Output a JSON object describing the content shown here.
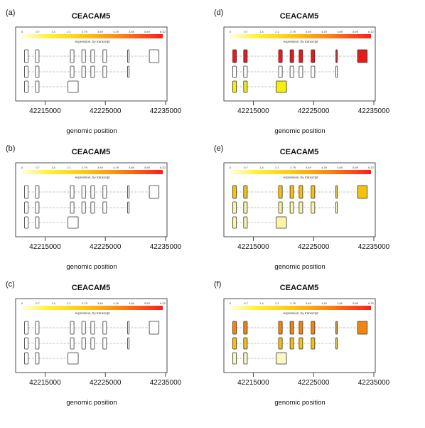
{
  "chart_data": [
    {
      "panel": "(a)",
      "title": "CEACAM5",
      "type": "gene-model",
      "xlabel": "genomic position",
      "xticks": [
        42215000,
        42225000,
        42235000
      ],
      "legend": {
        "caption": "expression, by transcript",
        "labels": [
          "0",
          "0.7",
          "1.4",
          "2.1",
          "2.79",
          "3.49",
          "4.19",
          "4.89",
          "5.59",
          "6.32"
        ]
      },
      "transcripts": [
        {
          "exons": [
            [
              42211600,
              42212200
            ],
            [
              42213400,
              42214000
            ],
            [
              42219200,
              42219800
            ],
            [
              42221100,
              42221700
            ],
            [
              42222600,
              42223200
            ],
            [
              42224600,
              42225200
            ],
            [
              42228700,
              42228950
            ],
            [
              42232300,
              42233900
            ]
          ],
          "fill": "#ffffff"
        },
        {
          "exons": [
            [
              42211600,
              42212200
            ],
            [
              42213400,
              42214000
            ],
            [
              42219200,
              42219800
            ],
            [
              42221100,
              42221700
            ],
            [
              42222600,
              42223200
            ],
            [
              42224600,
              42225200
            ],
            [
              42228700,
              42228950
            ]
          ],
          "fill": "#ffffff"
        },
        {
          "exons": [
            [
              42211600,
              42212200
            ],
            [
              42213400,
              42214000
            ],
            [
              42218800,
              42220500
            ]
          ],
          "fill": "#ffffff"
        }
      ]
    },
    {
      "panel": "(b)",
      "title": "CEACAM5",
      "type": "gene-model",
      "xlabel": "genomic position",
      "xticks": [
        42215000,
        42225000,
        42235000
      ],
      "legend": {
        "caption": "expression, by transcript",
        "labels": [
          "0",
          "0.7",
          "1.4",
          "2.1",
          "2.79",
          "3.49",
          "4.19",
          "4.89",
          "5.59",
          "6.32"
        ]
      },
      "transcripts": [
        {
          "exons": [
            [
              42211600,
              42212200
            ],
            [
              42213400,
              42214000
            ],
            [
              42219200,
              42219800
            ],
            [
              42221100,
              42221700
            ],
            [
              42222600,
              42223200
            ],
            [
              42224600,
              42225200
            ],
            [
              42228700,
              42228950
            ],
            [
              42232300,
              42233900
            ]
          ],
          "fill": "#ffffff"
        },
        {
          "exons": [
            [
              42211600,
              42212200
            ],
            [
              42213400,
              42214000
            ],
            [
              42219200,
              42219800
            ],
            [
              42221100,
              42221700
            ],
            [
              42222600,
              42223200
            ],
            [
              42224600,
              42225200
            ],
            [
              42228700,
              42228950
            ]
          ],
          "fill": "#ffffff"
        },
        {
          "exons": [
            [
              42211600,
              42212200
            ],
            [
              42213400,
              42214000
            ],
            [
              42218800,
              42220500
            ]
          ],
          "fill": "#ffffff"
        }
      ]
    },
    {
      "panel": "(c)",
      "title": "CEACAM5",
      "type": "gene-model",
      "xlabel": "genomic position",
      "xticks": [
        42215000,
        42225000,
        42235000
      ],
      "legend": {
        "caption": "expression, by transcript",
        "labels": [
          "0",
          "0.7",
          "1.4",
          "2.1",
          "2.79",
          "3.49",
          "4.19",
          "4.89",
          "5.59",
          "6.32"
        ]
      },
      "transcripts": [
        {
          "exons": [
            [
              42211600,
              42212200
            ],
            [
              42213400,
              42214000
            ],
            [
              42219200,
              42219800
            ],
            [
              42221100,
              42221700
            ],
            [
              42222600,
              42223200
            ],
            [
              42224600,
              42225200
            ],
            [
              42228700,
              42228950
            ],
            [
              42232300,
              42233900
            ]
          ],
          "fill": "#ffffff"
        },
        {
          "exons": [
            [
              42211600,
              42212200
            ],
            [
              42213400,
              42214000
            ],
            [
              42219200,
              42219800
            ],
            [
              42221100,
              42221700
            ],
            [
              42222600,
              42223200
            ],
            [
              42224600,
              42225200
            ],
            [
              42228700,
              42228950
            ]
          ],
          "fill": "#ffffff"
        },
        {
          "exons": [
            [
              42211600,
              42212200
            ],
            [
              42213400,
              42214000
            ],
            [
              42218800,
              42220500
            ]
          ],
          "fill": "#ffffff"
        }
      ]
    },
    {
      "panel": "(d)",
      "title": "CEACAM5",
      "type": "gene-model",
      "xlabel": "genomic position",
      "xticks": [
        42215000,
        42225000,
        42235000
      ],
      "legend": {
        "caption": "expression, by transcript",
        "labels": [
          "0",
          "0.7",
          "1.4",
          "2.1",
          "2.79",
          "3.49",
          "4.19",
          "4.89",
          "5.59",
          "6.32"
        ]
      },
      "transcripts": [
        {
          "exons": [
            [
              42211600,
              42212200
            ],
            [
              42213400,
              42214000
            ],
            [
              42219200,
              42219800
            ],
            [
              42221100,
              42221700
            ],
            [
              42222600,
              42223200
            ],
            [
              42224600,
              42225200
            ],
            [
              42228700,
              42228950
            ],
            [
              42232300,
              42233900
            ]
          ],
          "fill": "#e8191c"
        },
        {
          "exons": [
            [
              42211600,
              42212200
            ],
            [
              42213400,
              42214000
            ],
            [
              42219200,
              42219800
            ],
            [
              42221100,
              42221700
            ],
            [
              42222600,
              42223200
            ],
            [
              42224600,
              42225200
            ],
            [
              42228700,
              42228950
            ]
          ],
          "fill": "#ffffff"
        },
        {
          "exons": [
            [
              42211600,
              42212200
            ],
            [
              42213400,
              42214000
            ],
            [
              42218800,
              42220500
            ]
          ],
          "fill": "#f5ee10"
        }
      ]
    },
    {
      "panel": "(e)",
      "title": "CEACAM5",
      "type": "gene-model",
      "xlabel": "genomic position",
      "xticks": [
        42215000,
        42225000,
        42235000
      ],
      "legend": {
        "caption": "expression, by transcript",
        "labels": [
          "0",
          "0.7",
          "1.4",
          "2.1",
          "2.79",
          "3.49",
          "4.19",
          "4.89",
          "5.59",
          "6.32"
        ]
      },
      "transcripts": [
        {
          "exons": [
            [
              42211600,
              42212200
            ],
            [
              42213400,
              42214000
            ],
            [
              42219200,
              42219800
            ],
            [
              42221100,
              42221700
            ],
            [
              42222600,
              42223200
            ],
            [
              42224600,
              42225200
            ],
            [
              42228700,
              42228950
            ],
            [
              42232300,
              42233900
            ]
          ],
          "fill": "#f7c20c"
        },
        {
          "exons": [
            [
              42211600,
              42212200
            ],
            [
              42213400,
              42214000
            ],
            [
              42219200,
              42219800
            ],
            [
              42221100,
              42221700
            ],
            [
              42222600,
              42223200
            ],
            [
              42224600,
              42225200
            ],
            [
              42228700,
              42228950
            ]
          ],
          "fill": "#f9f3a8"
        },
        {
          "exons": [
            [
              42211600,
              42212200
            ],
            [
              42213400,
              42214000
            ],
            [
              42218800,
              42220500
            ]
          ],
          "fill": "#fbf6a6"
        }
      ]
    },
    {
      "panel": "(f)",
      "title": "CEACAM5",
      "type": "gene-model",
      "xlabel": "genomic position",
      "xticks": [
        42215000,
        42225000,
        42235000
      ],
      "legend": {
        "caption": "expression, by transcript",
        "labels": [
          "0",
          "0.7",
          "1.4",
          "2.1",
          "2.79",
          "3.49",
          "4.19",
          "4.89",
          "5.59",
          "6.32"
        ]
      },
      "transcripts": [
        {
          "exons": [
            [
              42211600,
              42212200
            ],
            [
              42213400,
              42214000
            ],
            [
              42219200,
              42219800
            ],
            [
              42221100,
              42221700
            ],
            [
              42222600,
              42223200
            ],
            [
              42224600,
              42225200
            ],
            [
              42228700,
              42228950
            ],
            [
              42232300,
              42233900
            ]
          ],
          "fill": "#f2860c"
        },
        {
          "exons": [
            [
              42211600,
              42212200
            ],
            [
              42213400,
              42214000
            ],
            [
              42219200,
              42219800
            ],
            [
              42221100,
              42221700
            ],
            [
              42222600,
              42223200
            ],
            [
              42224600,
              42225200
            ],
            [
              42228700,
              42228950
            ]
          ],
          "fill": "#f5bf16"
        },
        {
          "exons": [
            [
              42211600,
              42212200
            ],
            [
              42213400,
              42214000
            ],
            [
              42218800,
              42220500
            ]
          ],
          "fill": "#fbf7c0"
        }
      ]
    }
  ]
}
